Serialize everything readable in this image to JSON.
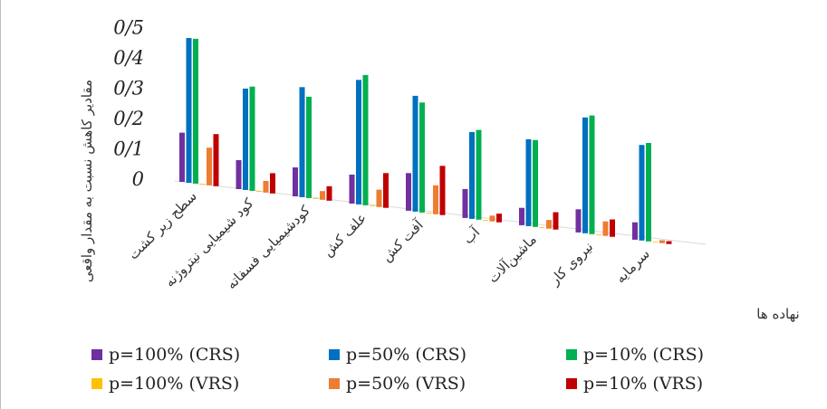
{
  "chart_data": {
    "type": "bar",
    "ylabel": "مقادیر کاهش نسبت به مقدار واقعی",
    "xlabel": "نهاده ها",
    "ylim": [
      0,
      0.5
    ],
    "y_ticks": [
      "0",
      "0/1",
      "0/2",
      "0/3",
      "0/4",
      "0/5"
    ],
    "categories": [
      "سطح زیر کشت",
      "کود شیمیایی نیتروژنه",
      "کودشیمیایی فسفاته",
      "علف کش",
      "آفت کش",
      "آب",
      "ماشین‌آلات",
      "نیروی کار",
      "سرمایه"
    ],
    "series": [
      {
        "name": "p=100% (CRS)",
        "color": "#7030a0",
        "values": [
          0.17,
          0.1,
          0.1,
          0.1,
          0.13,
          0.1,
          0.06,
          0.08,
          0.06
        ]
      },
      {
        "name": "p=50% (CRS)",
        "color": "#0070c0",
        "values": [
          0.5,
          0.35,
          0.38,
          0.43,
          0.4,
          0.3,
          0.3,
          0.4,
          0.33
        ]
      },
      {
        "name": "p=10% (CRS)",
        "color": "#00b050",
        "values": [
          0.5,
          0.36,
          0.35,
          0.45,
          0.38,
          0.31,
          0.3,
          0.41,
          0.34
        ]
      },
      {
        "name": "p=100% (VRS)",
        "color": "#ffc000",
        "values": [
          0.0,
          0.0,
          0.0,
          0.0,
          0.0,
          0.0,
          0.0,
          0.0,
          0.0
        ]
      },
      {
        "name": "p=50% (VRS)",
        "color": "#ed7d31",
        "values": [
          0.13,
          0.04,
          0.03,
          0.06,
          0.1,
          0.02,
          0.03,
          0.05,
          0.01
        ]
      },
      {
        "name": "p=10% (VRS)",
        "color": "#c00000",
        "values": [
          0.18,
          0.07,
          0.05,
          0.12,
          0.17,
          0.03,
          0.06,
          0.06,
          0.01
        ]
      }
    ],
    "legend_position": "bottom"
  }
}
